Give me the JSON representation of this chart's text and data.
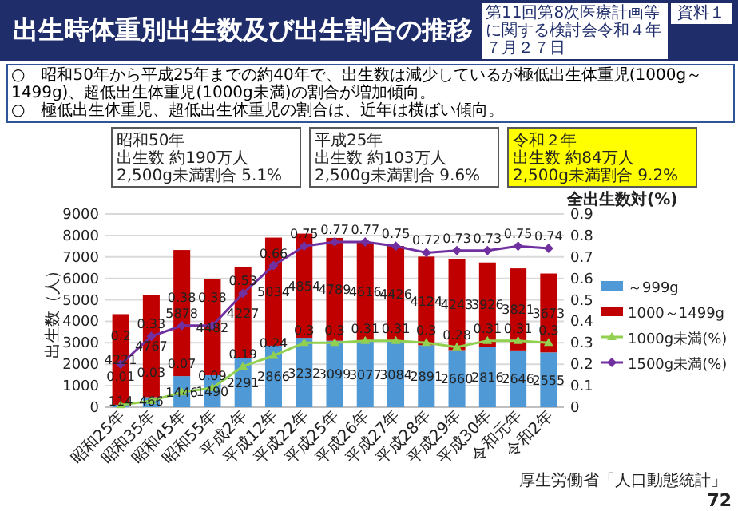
{
  "chart_data": {
    "type": "bar",
    "stacked": true,
    "title": "出生時体重別出生数及び出生割合の推移",
    "subtitle": "○　昭和50年から平成25年までの約40年で、出生数は減少しているが極低出生体重児(1000g～1499g)、超低出生体重児(1000g未満)の割合が増加傾向。\n○　極低出生体重児、超低出生体重児の割合は、近年は横ばい傾向。",
    "ylabel": "出生数（人）",
    "y2label": "全出生数対(%)",
    "categories": [
      "昭和25年",
      "昭和35年",
      "昭和45年",
      "昭和55年",
      "平成2年",
      "平成12年",
      "平成22年",
      "平成25年",
      "平成26年",
      "平成27年",
      "平成28年",
      "平成29年",
      "平成30年",
      "令和元年",
      "令和2年"
    ],
    "series": [
      {
        "name": "～999g",
        "color": "#4f9ad6",
        "values": [
          114,
          466,
          1446,
          1490,
          2291,
          2866,
          3232,
          3099,
          3077,
          3084,
          2891,
          2660,
          2816,
          2646,
          2555
        ]
      },
      {
        "name": "1000～1499g",
        "color": "#c00000",
        "values": [
          4221,
          4767,
          5878,
          4482,
          4227,
          5034,
          4854,
          4789,
          4616,
          4426,
          4124,
          4243,
          3926,
          3821,
          3673
        ]
      },
      {
        "name": "1000g未満(%)",
        "type": "line",
        "axis": "y2",
        "marker": "triangle",
        "color": "#92d050",
        "values": [
          0.01,
          0.03,
          0.07,
          0.09,
          0.19,
          0.24,
          0.3,
          0.3,
          0.31,
          0.31,
          0.3,
          0.28,
          0.31,
          0.31,
          0.3
        ]
      },
      {
        "name": "1500g未満(%)",
        "type": "line",
        "axis": "y2",
        "marker": "diamond",
        "color": "#7030a0",
        "values": [
          0.2,
          0.33,
          0.38,
          0.38,
          0.53,
          0.66,
          0.75,
          0.77,
          0.77,
          0.75,
          0.72,
          0.73,
          0.73,
          0.75,
          0.74
        ]
      }
    ],
    "ylim": [
      0,
      9000
    ],
    "yticks": [
      0,
      1000,
      2000,
      3000,
      4000,
      5000,
      6000,
      7000,
      8000,
      9000
    ],
    "y2lim": [
      0,
      0.9
    ],
    "y2ticks": [
      0,
      0.1,
      0.2,
      0.3,
      0.4,
      0.5,
      0.6,
      0.7,
      0.8,
      0.9
    ],
    "data_labels": true,
    "grid": "y",
    "legend": "right",
    "annotations": [
      "第11回第8次医療計画等に関する検討会",
      "令和４年７月２７日",
      "資料１",
      "昭和50年",
      "出生数 約190万人",
      "2,500g未満割合 5.1%",
      "平成25年",
      "出生数 約103万人",
      "2,500g未満割合 9.6%",
      "令和２年",
      "出生数 約84万人",
      "2,500g未満割合 9.2%",
      "厚生労働省「人口動態統計」",
      "72"
    ]
  }
}
